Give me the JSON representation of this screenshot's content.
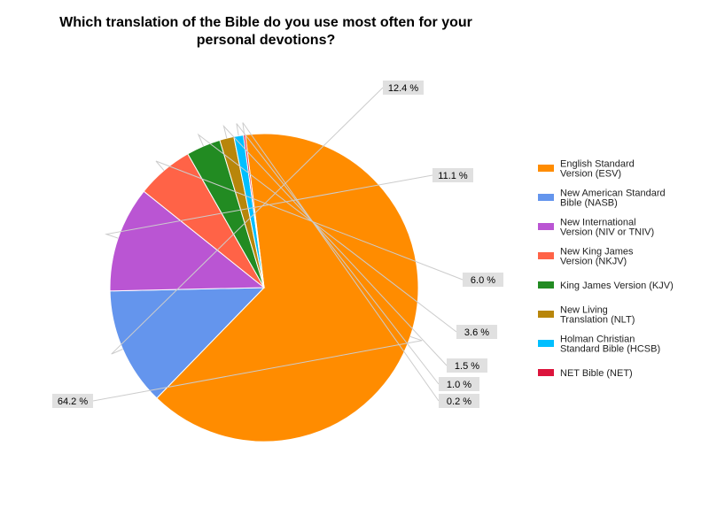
{
  "chart_data": {
    "type": "pie",
    "title_lines": [
      "Which translation of the Bible do you use most often for your",
      "personal devotions?"
    ],
    "slices": [
      {
        "label_lines": [
          "English Standard",
          "Version (ESV)"
        ],
        "value": 64.2,
        "value_label": "64.2 %",
        "color": "#ff8c00"
      },
      {
        "label_lines": [
          "New American Standard",
          "Bible (NASB)"
        ],
        "value": 12.4,
        "value_label": "12.4 %",
        "color": "#6495ed"
      },
      {
        "label_lines": [
          "New International",
          "Version (NIV or TNIV)"
        ],
        "value": 11.1,
        "value_label": "11.1 %",
        "color": "#ba55d3"
      },
      {
        "label_lines": [
          "New King James",
          "Version (NKJV)"
        ],
        "value": 6.0,
        "value_label": "6.0 %",
        "color": "#ff6347"
      },
      {
        "label_lines": [
          "King James Version (KJV)"
        ],
        "value": 3.6,
        "value_label": "3.6 %",
        "color": "#228b22"
      },
      {
        "label_lines": [
          "New Living",
          "Translation (NLT)"
        ],
        "value": 1.5,
        "value_label": "1.5 %",
        "color": "#b8860b"
      },
      {
        "label_lines": [
          "Holman Christian",
          "Standard Bible (HCSB)"
        ],
        "value": 1.0,
        "value_label": "1.0 %",
        "color": "#00bfff"
      },
      {
        "label_lines": [
          "NET Bible (NET)"
        ],
        "value": 0.2,
        "value_label": "0.2 %",
        "color": "#dc143c"
      }
    ],
    "start_angle_deg": -7,
    "direction": "clockwise",
    "legend_position": "right"
  }
}
